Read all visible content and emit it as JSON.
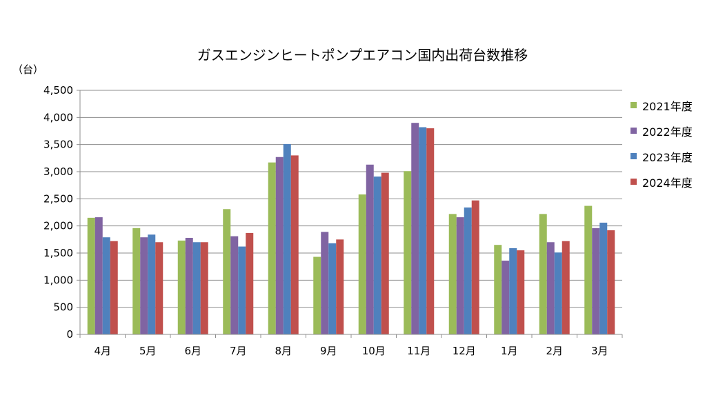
{
  "chart_data": {
    "type": "bar",
    "title": "ガスエンジンヒートポンプエアコン国内出荷台数推移",
    "ylabel": "（台）",
    "xlabel": "",
    "ylim": [
      0,
      4500
    ],
    "yticks": [
      0,
      500,
      1000,
      1500,
      2000,
      2500,
      3000,
      3500,
      4000,
      4500
    ],
    "ytick_labels": [
      "0",
      "500",
      "1,000",
      "1,500",
      "2,000",
      "2,500",
      "3,000",
      "3,500",
      "4,000",
      "4,500"
    ],
    "grid": true,
    "legend_position": "right",
    "categories": [
      "4月",
      "5月",
      "6月",
      "7月",
      "8月",
      "9月",
      "10月",
      "11月",
      "12月",
      "1月",
      "2月",
      "3月"
    ],
    "series": [
      {
        "name": "2021年度",
        "color": "#9BBB59",
        "values": [
          2150,
          1960,
          1730,
          2310,
          3170,
          1430,
          2580,
          3010,
          2220,
          1650,
          2220,
          2370
        ]
      },
      {
        "name": "2022年度",
        "color": "#8064A2",
        "values": [
          2160,
          1790,
          1780,
          1810,
          3270,
          1890,
          3130,
          3900,
          2160,
          1360,
          1700,
          1960
        ]
      },
      {
        "name": "2023年度",
        "color": "#4F81BD",
        "values": [
          1790,
          1840,
          1700,
          1620,
          3510,
          1680,
          2910,
          3820,
          2340,
          1590,
          1510,
          2060
        ]
      },
      {
        "name": "2024年度",
        "color": "#C0504D",
        "values": [
          1720,
          1700,
          1700,
          1870,
          3300,
          1750,
          2980,
          3800,
          2470,
          1550,
          1720,
          1920
        ]
      }
    ]
  }
}
